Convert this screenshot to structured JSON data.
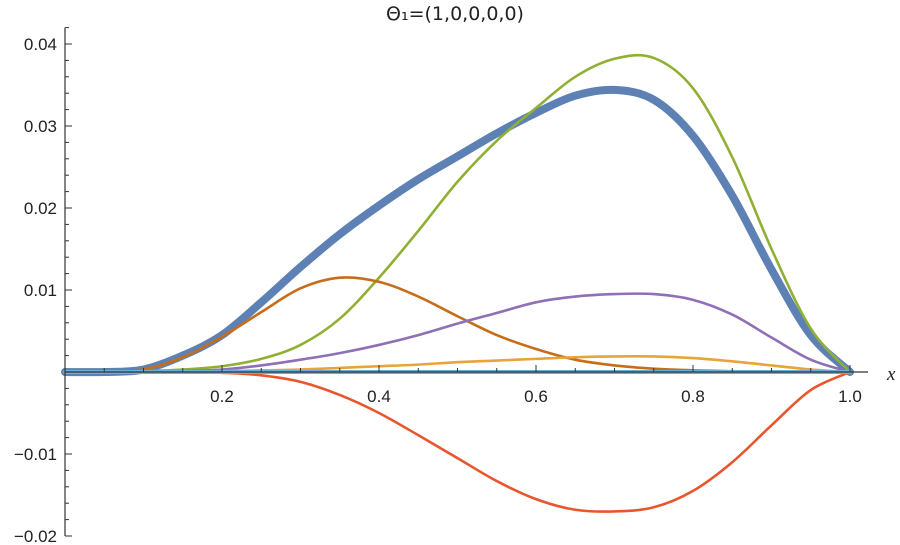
{
  "chart_data": {
    "type": "line",
    "title": "Θ₁=(1,0,0,0,0)",
    "xlabel": "x",
    "ylabel": "",
    "xlim": [
      0,
      1.0
    ],
    "ylim": [
      -0.02,
      0.042
    ],
    "x_ticks": [
      0.2,
      0.4,
      0.6,
      0.8,
      1.0
    ],
    "x_tick_labels": [
      "0.2",
      "0.4",
      "0.6",
      "0.8",
      "1.0"
    ],
    "y_ticks": [
      -0.02,
      -0.01,
      0.01,
      0.02,
      0.03,
      0.04
    ],
    "y_tick_labels": [
      "−0.02",
      "−0.01",
      "0.01",
      "0.02",
      "0.03",
      "0.04"
    ],
    "grid": false,
    "legend": "none",
    "x": [
      0,
      0.05,
      0.1,
      0.15,
      0.2,
      0.25,
      0.3,
      0.35,
      0.4,
      0.45,
      0.5,
      0.55,
      0.6,
      0.65,
      0.7,
      0.75,
      0.8,
      0.85,
      0.9,
      0.95,
      1.0
    ],
    "series": [
      {
        "color": "#5e81b5",
        "width": 8,
        "values": [
          0,
          0,
          0.0003,
          0.002,
          0.0045,
          0.0085,
          0.0128,
          0.0168,
          0.0203,
          0.0235,
          0.0263,
          0.0291,
          0.0316,
          0.0337,
          0.0344,
          0.0332,
          0.0288,
          0.0215,
          0.0125,
          0.0045,
          0
        ]
      },
      {
        "color": "#8fb032",
        "width": 2.6,
        "values": [
          0,
          0,
          0.0001,
          0.0003,
          0.0007,
          0.0016,
          0.0033,
          0.0065,
          0.0115,
          0.0172,
          0.0232,
          0.0282,
          0.0322,
          0.036,
          0.0382,
          0.0383,
          0.0346,
          0.0262,
          0.015,
          0.0053,
          0
        ]
      },
      {
        "color": "#c56e1a",
        "width": 2.6,
        "values": [
          0,
          0,
          0.0003,
          0.0018,
          0.0043,
          0.0073,
          0.0102,
          0.0115,
          0.011,
          0.0092,
          0.0068,
          0.0045,
          0.0028,
          0.0015,
          0.0008,
          0.0004,
          0.0002,
          0.0001,
          0,
          0,
          0
        ]
      },
      {
        "color": "#8f6fb5",
        "width": 2.6,
        "values": [
          0,
          0,
          0,
          0.0001,
          0.0003,
          0.0008,
          0.0015,
          0.0023,
          0.0033,
          0.0045,
          0.0059,
          0.0072,
          0.0085,
          0.0092,
          0.0095,
          0.0095,
          0.0088,
          0.007,
          0.0042,
          0.0015,
          0
        ]
      },
      {
        "color": "#e8a33a",
        "width": 2.6,
        "values": [
          0,
          0,
          0,
          0,
          0.0001,
          0.0002,
          0.0003,
          0.0005,
          0.0007,
          0.0009,
          0.0012,
          0.0014,
          0.0016,
          0.0018,
          0.0019,
          0.0019,
          0.0017,
          0.0013,
          0.0008,
          0.0003,
          0
        ]
      },
      {
        "color": "#e8562e",
        "width": 2.6,
        "values": [
          0,
          0,
          0,
          0,
          -0.0001,
          -0.0004,
          -0.0012,
          -0.0028,
          -0.005,
          -0.0077,
          -0.0105,
          -0.0133,
          -0.0155,
          -0.0168,
          -0.017,
          -0.0165,
          -0.0145,
          -0.011,
          -0.0065,
          -0.0022,
          0
        ]
      },
      {
        "color": "#6aaed6",
        "width": 4,
        "values": [
          0,
          0,
          0,
          0,
          0,
          0,
          0,
          0,
          0,
          0,
          0,
          0,
          0,
          0,
          0,
          0,
          0,
          0,
          0,
          0,
          0
        ]
      }
    ]
  }
}
